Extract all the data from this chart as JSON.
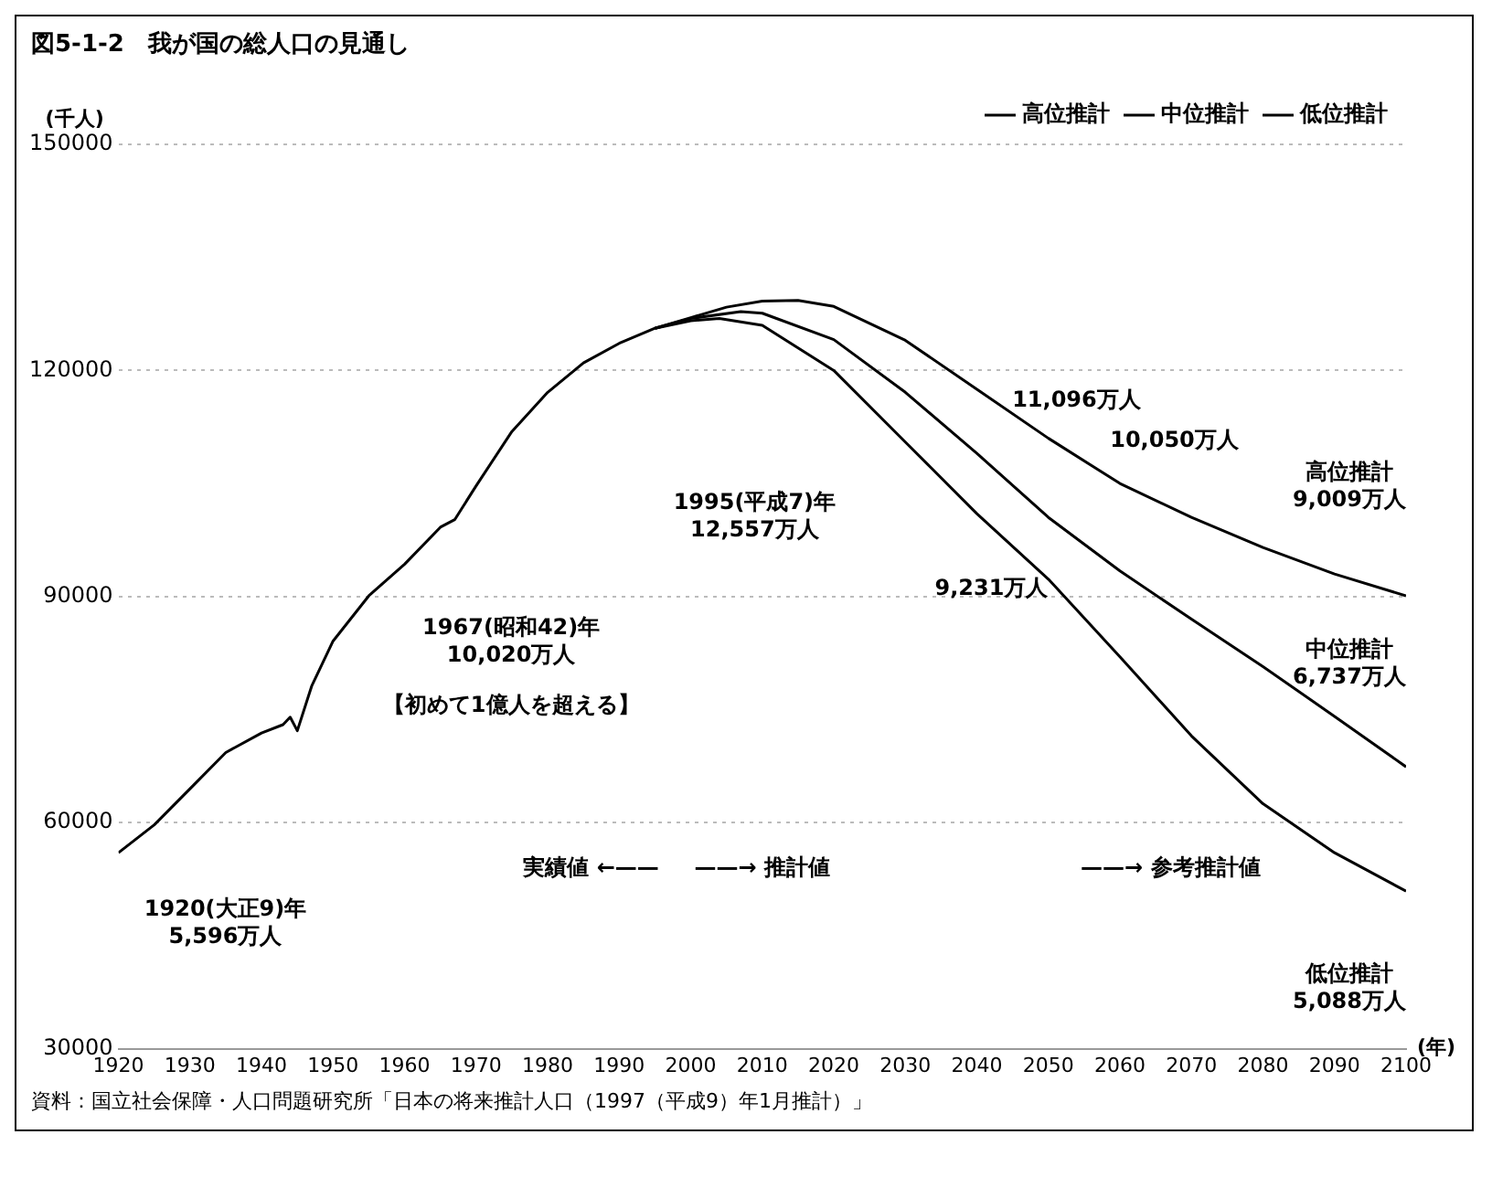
{
  "chart_data": {
    "type": "line",
    "title": "図5-1-2　我が国の総人口の見通し",
    "ylabel": "(千人)",
    "xlabel": "(年)",
    "xlim": [
      1920,
      2100
    ],
    "xticks": [
      1920,
      1930,
      1940,
      1950,
      1960,
      1970,
      1980,
      1990,
      2000,
      2010,
      2020,
      2030,
      2040,
      2050,
      2060,
      2070,
      2080,
      2090,
      2100
    ],
    "ylim": [
      30000,
      150000
    ],
    "yticks": [
      30000,
      60000,
      90000,
      120000,
      150000
    ],
    "grid": "y",
    "legend": "top right",
    "line_style": "solid",
    "marker": "none",
    "series": [
      {
        "name": "高位推計",
        "color": "#000000",
        "x": [
          1995,
          2000,
          2005,
          2010,
          2015,
          2020,
          2030,
          2040,
          2050,
          2060,
          2070,
          2080,
          2090,
          2100
        ],
        "values": [
          125600,
          127000,
          128400,
          129200,
          129300,
          128500,
          124000,
          117500,
          111000,
          105000,
          100500,
          96500,
          93000,
          90100
        ]
      },
      {
        "name": "中位推計",
        "color": "#000000",
        "x": [
          1920,
          1925,
          1930,
          1935,
          1940,
          1943,
          1944,
          1945,
          1947,
          1950,
          1955,
          1960,
          1965,
          1967,
          1970,
          1975,
          1980,
          1985,
          1990,
          1995,
          2000,
          2007,
          2010,
          2020,
          2030,
          2040,
          2050,
          2060,
          2070,
          2080,
          2090,
          2100
        ],
        "values": [
          56000,
          59700,
          64500,
          69300,
          71900,
          73000,
          74000,
          72200,
          78100,
          84100,
          90100,
          94300,
          99200,
          100200,
          104700,
          111900,
          117100,
          121000,
          123600,
          125600,
          126900,
          127800,
          127600,
          124100,
          117100,
          109000,
          100500,
          93400,
          87000,
          80700,
          74100,
          67400
        ]
      },
      {
        "name": "低位推計",
        "color": "#000000",
        "x": [
          1995,
          2000,
          2004,
          2010,
          2020,
          2030,
          2040,
          2050,
          2060,
          2070,
          2080,
          2090,
          2100
        ],
        "values": [
          125600,
          126600,
          126900,
          126000,
          120000,
          110500,
          101000,
          92300,
          82000,
          71500,
          62500,
          56000,
          50900
        ]
      }
    ],
    "annotations": [
      "1920(大正9)年\n5,596万人",
      "11,096万人",
      "10,050万人",
      "9,231万人",
      "1967(昭和42)年\n10,020万人",
      "【初めて1億人を超える】",
      "1995(平成7)年\n12,557万人",
      "高位推計\n9,009万人",
      "中位推計\n6,737万人",
      "低位推計\n5,088万人",
      "実績値 ←——",
      "——→ 推計値",
      "——→ 参考推計値",
      "資料：国立社会保障・人口問題研究所「日本の将来推計人口（1997（平成9）年1月推計）」"
    ]
  }
}
